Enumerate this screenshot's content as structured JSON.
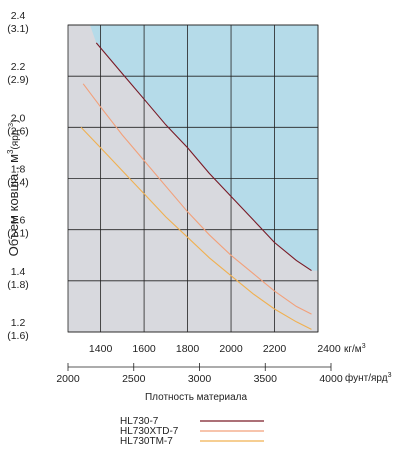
{
  "chart_data": {
    "type": "line",
    "ylabel_main": "Объем ковша , м",
    "ylabel_sup": "3",
    "ylabel_rest": "(ярд ",
    "ylabel_sup2": "3",
    "ylabel_end": ")",
    "x_unit": "кг/м",
    "x_unit_sup": "3",
    "x2_unit": "фунт/ярд",
    "x2_unit_sup": "3",
    "x2_title": "Плотность материала",
    "xlim": [
      1250,
      2400
    ],
    "ylim": [
      1.2,
      2.4
    ],
    "x_ticks": [
      1400,
      1600,
      1800,
      2000,
      2200,
      2400
    ],
    "x_tick_labels": [
      "1400",
      "1600",
      "1800",
      "2000",
      "2200",
      "2400"
    ],
    "y_ticks": [
      {
        "value": 2.4,
        "label": "2.4",
        "sub": "(3.1)"
      },
      {
        "value": 2.2,
        "label": "2.2",
        "sub": "(2.9)"
      },
      {
        "value": 2.0,
        "label": "2.0",
        "sub": "(2.6)"
      },
      {
        "value": 1.8,
        "label": "1.8",
        "sub": "(2.4)"
      },
      {
        "value": 1.6,
        "label": "1.6",
        "sub": "(2.1)"
      },
      {
        "value": 1.4,
        "label": "1.4",
        "sub": "(1.8)"
      },
      {
        "value": 1.2,
        "label": "1.2",
        "sub": "(1.6)"
      }
    ],
    "x2_ticks": [
      {
        "value": 2000,
        "label": "2000"
      },
      {
        "value": 2500,
        "label": "2500"
      },
      {
        "value": 3000,
        "label": "3000"
      },
      {
        "value": 3500,
        "label": "3500"
      },
      {
        "value": 4000,
        "label": "4000"
      }
    ],
    "series": [
      {
        "name": "HL730-7",
        "color": "#7a1a26",
        "x": [
          1380,
          1500,
          1600,
          1700,
          1800,
          1900,
          2000,
          2100,
          2200,
          2300,
          2370
        ],
        "y": [
          2.33,
          2.21,
          2.11,
          2.01,
          1.92,
          1.82,
          1.73,
          1.64,
          1.55,
          1.48,
          1.44
        ]
      },
      {
        "name": "HL730XTD-7",
        "color": "#f2a07a",
        "x": [
          1320,
          1400,
          1500,
          1600,
          1700,
          1800,
          1900,
          2000,
          2100,
          2200,
          2300,
          2370
        ],
        "y": [
          2.17,
          2.08,
          1.97,
          1.87,
          1.77,
          1.67,
          1.58,
          1.5,
          1.43,
          1.36,
          1.3,
          1.27
        ]
      },
      {
        "name": "HL730TM-7",
        "color": "#f0b050",
        "x": [
          1310,
          1400,
          1500,
          1600,
          1700,
          1800,
          1900,
          2000,
          2100,
          2200,
          2300,
          2370
        ],
        "y": [
          2.0,
          1.92,
          1.83,
          1.74,
          1.65,
          1.57,
          1.49,
          1.42,
          1.35,
          1.29,
          1.24,
          1.21
        ]
      }
    ],
    "grid": true,
    "colors": {
      "grey_region": "#d8d9de",
      "blue_region": "#b5dbe9",
      "grid": "#222222"
    }
  }
}
